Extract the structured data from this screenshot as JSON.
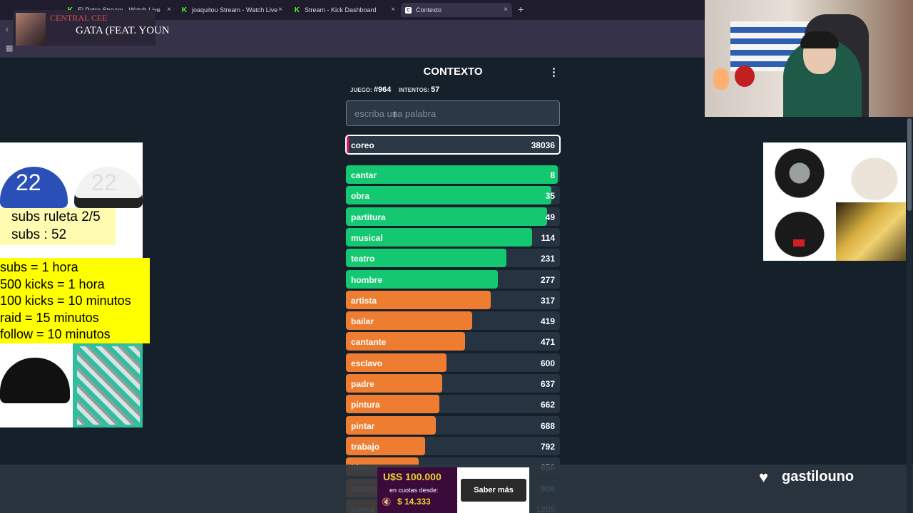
{
  "browser": {
    "tabs": [
      {
        "label": "El Potro Stream - Watch Live",
        "icon": "kick-icon"
      },
      {
        "label": "joaquitou Stream - Watch Live",
        "icon": "kick-icon"
      },
      {
        "label": "Stream - Kick Dashboard",
        "icon": "kick-icon"
      },
      {
        "label": "Contexto",
        "icon": "contexto-icon"
      }
    ],
    "new_tab": "+",
    "close": "×"
  },
  "music": {
    "artist": "CENTRAL CEE",
    "song": "GATA (FEAT. YOUNG MIKO)"
  },
  "promo_left": {
    "cap_number_1": "22",
    "cap_number_2": "22",
    "subs_roulette": "subs ruleta 2/5",
    "subs_count": "subs : 52",
    "rules": [
      "subs = 1 hora",
      "500 kicks = 1 hora",
      "100 kicks = 10 minutos",
      "raid = 15 minutos",
      "follow = 10 minutos"
    ]
  },
  "game": {
    "title": "CONTEXTO",
    "menu": "⋮",
    "game_label": "JUEGO:",
    "game_number": "#964",
    "attempts_label": "INTENTOS:",
    "attempts": "57",
    "input_placeholder": "escriba una palabra",
    "current_guess": {
      "word": "coreo",
      "rank": "38036"
    },
    "guesses": [
      {
        "word": "cantar",
        "rank": "8",
        "progress": 0.99,
        "color": "#14c771"
      },
      {
        "word": "obra",
        "rank": "35",
        "progress": 0.96,
        "color": "#14c771"
      },
      {
        "word": "partitura",
        "rank": "49",
        "progress": 0.94,
        "color": "#14c771"
      },
      {
        "word": "musical",
        "rank": "114",
        "progress": 0.87,
        "color": "#14c771"
      },
      {
        "word": "teatro",
        "rank": "231",
        "progress": 0.75,
        "color": "#14c771"
      },
      {
        "word": "hombre",
        "rank": "277",
        "progress": 0.71,
        "color": "#14c771"
      },
      {
        "word": "artista",
        "rank": "317",
        "progress": 0.675,
        "color": "#ef7d31"
      },
      {
        "word": "bailar",
        "rank": "419",
        "progress": 0.59,
        "color": "#ef7d31"
      },
      {
        "word": "cantante",
        "rank": "471",
        "progress": 0.555,
        "color": "#ef7d31"
      },
      {
        "word": "esclavo",
        "rank": "600",
        "progress": 0.47,
        "color": "#ef7d31"
      },
      {
        "word": "padre",
        "rank": "637",
        "progress": 0.45,
        "color": "#ef7d31"
      },
      {
        "word": "pintura",
        "rank": "662",
        "progress": 0.435,
        "color": "#ef7d31"
      },
      {
        "word": "pintar",
        "rank": "688",
        "progress": 0.42,
        "color": "#ef7d31"
      },
      {
        "word": "trabajo",
        "rank": "792",
        "progress": 0.37,
        "color": "#ef7d31"
      },
      {
        "word": "blanco",
        "rank": "856",
        "progress": 0.34,
        "color": "#ef7d31"
      },
      {
        "word": "escena",
        "rank": "908",
        "progress": 0.32,
        "color": "#ef7d31"
      },
      {
        "word": "pared",
        "rank": "1205",
        "progress": 0.3,
        "color": "#ef7d31"
      }
    ]
  },
  "ad": {
    "amount": "U$S 100.000",
    "subtitle": "en cuotas desde:",
    "price": "$ 14.333",
    "cta": "Saber más"
  },
  "streamer": {
    "name": "gastilouno"
  }
}
